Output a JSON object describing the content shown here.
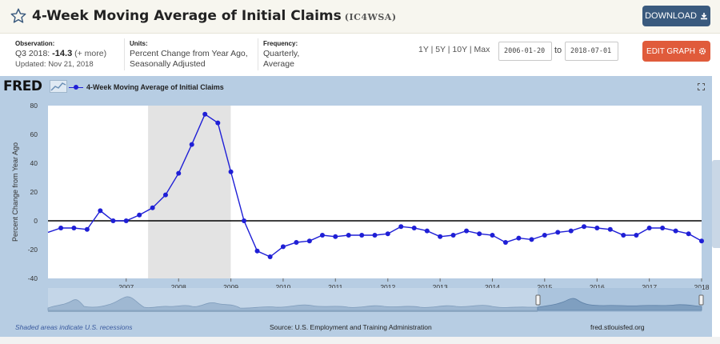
{
  "header": {
    "title": "4-Week Moving Average of Initial Claims",
    "series_id": "(IC4WSA)",
    "download_label": "DOWNLOAD"
  },
  "meta": {
    "observation_label": "Observation:",
    "observation_period": "Q3 2018:",
    "observation_value": "-14.3",
    "observation_more": "(+ more)",
    "updated": "Updated: Nov 21, 2018",
    "units_label": "Units:",
    "units_line1": "Percent Change from Year Ago,",
    "units_line2": "Seasonally Adjusted",
    "frequency_label": "Frequency:",
    "frequency_line1": "Quarterly,",
    "frequency_line2": "Average",
    "range_links": "1Y | 5Y | 10Y | Max",
    "date_from": "2006-01-20",
    "date_to_label": "to",
    "date_to": "2018-07-01",
    "edit_label": "EDIT GRAPH"
  },
  "panel": {
    "logo": "FRED",
    "recession_note": "Shaded areas indicate U.S. recessions",
    "source": "Source: U.S. Employment and Training Administration",
    "site": "fred.stlouisfed.org"
  },
  "colors": {
    "series": "#1f1fd6",
    "recession": "#e3e3e3",
    "panel": "#b7cde3",
    "download_button": "#3a5a7e",
    "edit_button": "#e05b3b"
  },
  "chart_data": {
    "type": "line",
    "title": "",
    "legend": [
      "4-Week Moving Average of Initial Claims"
    ],
    "xlabel": "",
    "ylabel": "Percent Change from Year Ago",
    "ylim": [
      -40,
      80
    ],
    "yticks": [
      -40,
      -20,
      0,
      20,
      40,
      60,
      80
    ],
    "xticks": [
      "2007",
      "2008",
      "2009",
      "2010",
      "2011",
      "2012",
      "2013",
      "2014",
      "2015",
      "2016",
      "2017",
      "2018"
    ],
    "xlim": [
      "2006-01-01",
      "2018-07-01"
    ],
    "grid": false,
    "zero_line": true,
    "recessions": [
      [
        "2007-12-01",
        "2009-06-30"
      ]
    ],
    "series": [
      {
        "name": "4-Week Moving Average of Initial Claims",
        "x": [
          "2006-01-01",
          "2006-04-01",
          "2006-07-01",
          "2006-10-01",
          "2007-01-01",
          "2007-04-01",
          "2007-07-01",
          "2007-10-01",
          "2008-01-01",
          "2008-04-01",
          "2008-07-01",
          "2008-10-01",
          "2009-01-01",
          "2009-04-01",
          "2009-07-01",
          "2009-10-01",
          "2010-01-01",
          "2010-04-01",
          "2010-07-01",
          "2010-10-01",
          "2011-01-01",
          "2011-04-01",
          "2011-07-01",
          "2011-10-01",
          "2012-01-01",
          "2012-04-01",
          "2012-07-01",
          "2012-10-01",
          "2013-01-01",
          "2013-04-01",
          "2013-07-01",
          "2013-10-01",
          "2014-01-01",
          "2014-04-01",
          "2014-07-01",
          "2014-10-01",
          "2015-01-01",
          "2015-04-01",
          "2015-07-01",
          "2015-10-01",
          "2016-01-01",
          "2016-04-01",
          "2016-07-01",
          "2016-10-01",
          "2017-01-01",
          "2017-04-01",
          "2017-07-01",
          "2017-10-01",
          "2018-01-01",
          "2018-04-01",
          "2018-07-01"
        ],
        "values": [
          -8,
          -5,
          -5,
          -6,
          7,
          0,
          0,
          4,
          9,
          18,
          33,
          53,
          74,
          68,
          34,
          0,
          -21,
          -25,
          -18,
          -15,
          -14,
          -10,
          -11,
          -10,
          -10,
          -10,
          -9,
          -4,
          -5,
          -7,
          -11,
          -10,
          -7,
          -9,
          -10,
          -15,
          -12,
          -13,
          -10,
          -8,
          -7,
          -4,
          -5,
          -6,
          -10,
          -10,
          -5,
          -5,
          -7,
          -9,
          -14
        ]
      }
    ]
  }
}
